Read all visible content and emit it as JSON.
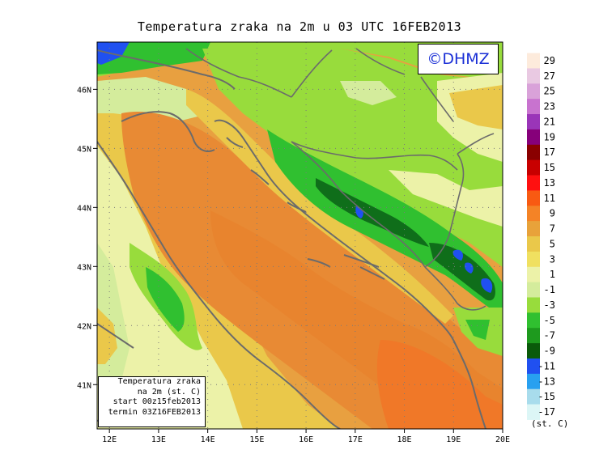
{
  "title": "Temperatura zraka na 2m u 03 UTC 16FEB2013",
  "logo": "©DHMZ",
  "info_box": {
    "line1": "Temperatura zraka",
    "line2": "na 2m (st. C)",
    "line3": "start 00z15feb2013",
    "line4": "termin 03Z16FEB2013"
  },
  "lat_ticks": [
    {
      "label": "46N",
      "value": 46
    },
    {
      "label": "45N",
      "value": 45
    },
    {
      "label": "44N",
      "value": 44
    },
    {
      "label": "43N",
      "value": 43
    },
    {
      "label": "42N",
      "value": 42
    },
    {
      "label": "41N",
      "value": 41
    }
  ],
  "lon_ticks": [
    {
      "label": "12E",
      "value": 12
    },
    {
      "label": "13E",
      "value": 13
    },
    {
      "label": "14E",
      "value": 14
    },
    {
      "label": "15E",
      "value": 15
    },
    {
      "label": "16E",
      "value": 16
    },
    {
      "label": "17E",
      "value": 17
    },
    {
      "label": "18E",
      "value": 18
    },
    {
      "label": "19E",
      "value": 19
    },
    {
      "label": "20E",
      "value": 20
    }
  ],
  "colorbar": {
    "units": "(st. C)",
    "boundaries": [
      "29",
      "27",
      "25",
      "23",
      "21",
      "19",
      "17",
      "15",
      "13",
      "11",
      "9",
      "7",
      "5",
      "3",
      "1",
      "-1",
      "-3",
      "-5",
      "-7",
      "-9",
      "-11",
      "-13",
      "-15",
      "-17"
    ],
    "colors": [
      "#fdebdc",
      "#e9c9e2",
      "#d9a2d9",
      "#c873cf",
      "#9a35b8",
      "#86007a",
      "#8a0000",
      "#c80000",
      "#ff1010",
      "#f85a12",
      "#f48326",
      "#e8a23a",
      "#eac84a",
      "#f0e060",
      "#ecf2a8",
      "#d4ec9c",
      "#98dc3c",
      "#30c030",
      "#1e9a1e",
      "#0a5a0a",
      "#2050f0",
      "#28a0f0",
      "#a8dcec",
      "#dcf6f6"
    ]
  },
  "field_colors": {
    "sea_warm": "#e88a34",
    "sea_mild": "#e8a040",
    "coast": "#eac84a",
    "lowland": "#ecf2a8",
    "hills": "#98dc3c",
    "mountains": "#30c030",
    "peaks": "#0f6e1a",
    "cold_spots": "#2050f0",
    "warm_sea_core": "#f07828"
  }
}
